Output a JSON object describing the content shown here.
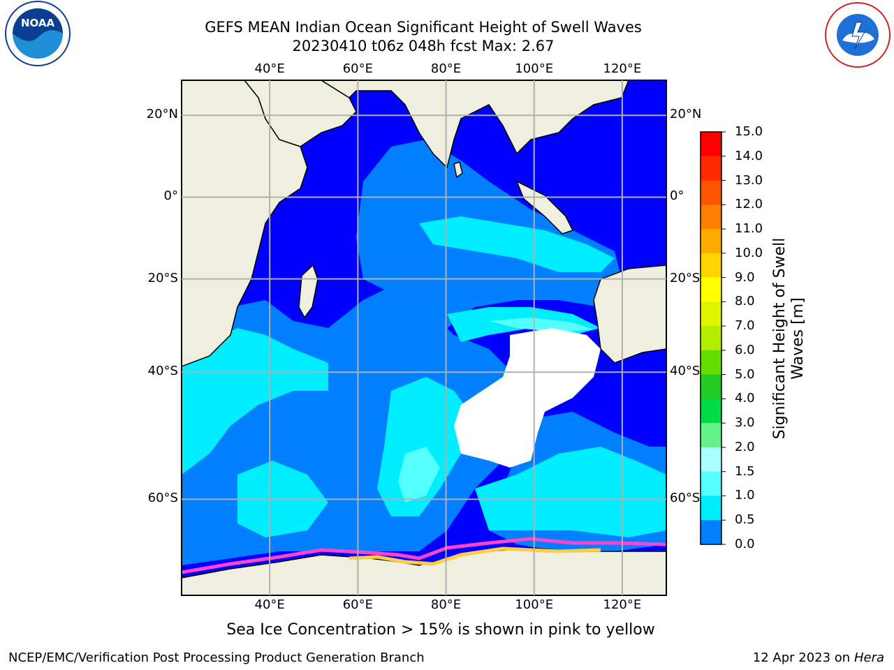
{
  "title_line1": "GEFS MEAN Indian Ocean Significant Height of Swell Waves",
  "title_line2": "20230410 t06z 048h fcst   Max: 2.67",
  "subtitle": "Sea Ice Concentration > 15% is shown in pink to yellow",
  "footer_left": "NCEP/EMC/Verification Post Processing Product Generation Branch",
  "footer_right_prefix": "12 Apr 2023 on ",
  "footer_right_host": "Hera",
  "logos": {
    "left": "NOAA",
    "right": "NATIONAL WEATHER SERVICE"
  },
  "map": {
    "lon_ticks": [
      "40°E",
      "60°E",
      "80°E",
      "100°E",
      "120°E"
    ],
    "lat_ticks": [
      "20°N",
      "0°",
      "20°S",
      "40°S",
      "60°S"
    ],
    "lon_values": [
      40,
      60,
      80,
      100,
      120
    ],
    "lat_values": [
      20,
      0,
      -20,
      -40,
      -60
    ],
    "extent": {
      "lon_min": 20,
      "lon_max": 130,
      "lat_min": -70,
      "lat_max": 28
    }
  },
  "colorbar": {
    "title": "Significant Height of Swell Waves [m]",
    "labels": [
      "15.0",
      "14.0",
      "13.0",
      "12.0",
      "11.0",
      "10.0",
      "9.0",
      "8.0",
      "7.0",
      "6.0",
      "5.0",
      "4.0",
      "3.0",
      "2.0",
      "1.5",
      "1.0",
      "0.5",
      "0.0"
    ],
    "colors": [
      "#ff0000",
      "#ff2a00",
      "#ff5500",
      "#ff7f00",
      "#ffaa00",
      "#ffd400",
      "#ffff00",
      "#ddf500",
      "#b3ee00",
      "#66dd00",
      "#22cc22",
      "#00dd44",
      "#66f08a",
      "#aaffff",
      "#55ffff",
      "#00eeff",
      "#0080ff",
      "#0000ff"
    ]
  },
  "colors": {
    "land": "#efefdf",
    "ocean_deep": "#0000ff",
    "ocean_mid": "#0080ff",
    "ocean_light": "#00eeff",
    "ocean_pale": "#55ffff",
    "ice_pink": "#ff44cc",
    "ice_yellow": "#ffcc44"
  }
}
